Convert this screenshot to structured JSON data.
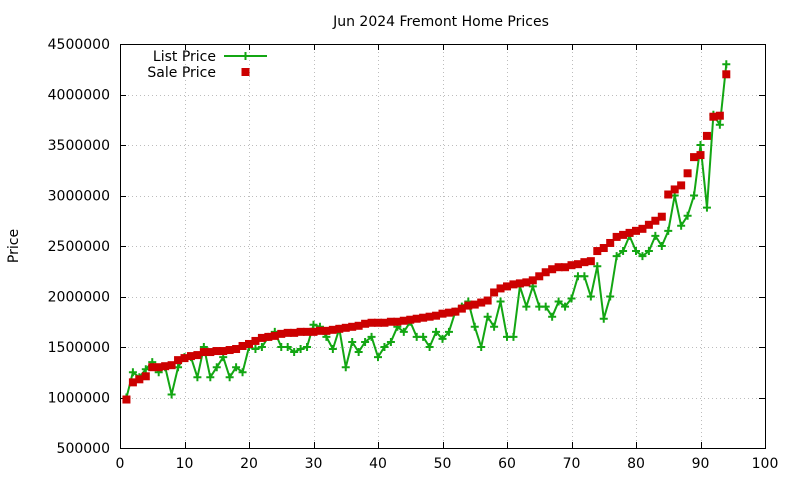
{
  "chart_data": {
    "type": "line",
    "title": "Jun 2024 Fremont Home Prices",
    "xlabel": "",
    "ylabel": "Price",
    "xlim": [
      0,
      100
    ],
    "ylim": [
      500000,
      4500000
    ],
    "xticks": [
      0,
      10,
      20,
      30,
      40,
      50,
      60,
      70,
      80,
      90,
      100
    ],
    "yticks": [
      500000,
      1000000,
      1500000,
      2000000,
      2500000,
      3000000,
      3500000,
      4000000,
      4500000
    ],
    "grid": true,
    "legend_position": "top-left",
    "series": [
      {
        "name": "List Price",
        "style": "line-with-plus-markers",
        "color": "#13a613",
        "x": [
          1,
          2,
          3,
          4,
          5,
          6,
          7,
          8,
          9,
          10,
          11,
          12,
          13,
          14,
          15,
          16,
          17,
          18,
          19,
          20,
          21,
          22,
          23,
          24,
          25,
          26,
          27,
          28,
          29,
          30,
          31,
          32,
          33,
          34,
          35,
          36,
          37,
          38,
          39,
          40,
          41,
          42,
          43,
          44,
          45,
          46,
          47,
          48,
          49,
          50,
          51,
          52,
          53,
          54,
          55,
          56,
          57,
          58,
          59,
          60,
          61,
          62,
          63,
          64,
          65,
          66,
          67,
          68,
          69,
          70,
          71,
          72,
          73,
          74,
          75,
          76,
          77,
          78,
          79,
          80,
          81,
          82,
          83,
          84,
          85,
          86,
          87,
          88,
          89,
          90,
          91,
          92,
          93,
          94
        ],
        "values": [
          1000000,
          1250000,
          1200000,
          1280000,
          1350000,
          1250000,
          1300000,
          1030000,
          1300000,
          1400000,
          1400000,
          1200000,
          1500000,
          1200000,
          1300000,
          1400000,
          1200000,
          1300000,
          1250000,
          1500000,
          1480000,
          1500000,
          1600000,
          1650000,
          1500000,
          1500000,
          1450000,
          1480000,
          1500000,
          1720000,
          1700000,
          1600000,
          1480000,
          1680000,
          1300000,
          1550000,
          1450000,
          1550000,
          1600000,
          1400000,
          1500000,
          1550000,
          1700000,
          1650000,
          1750000,
          1600000,
          1600000,
          1500000,
          1650000,
          1580000,
          1650000,
          1850000,
          1900000,
          1950000,
          1700000,
          1500000,
          1800000,
          1700000,
          1950000,
          1600000,
          1600000,
          2100000,
          1900000,
          2100000,
          1900000,
          1900000,
          1800000,
          1950000,
          1900000,
          1980000,
          2200000,
          2200000,
          2000000,
          2300000,
          1780000,
          2000000,
          2400000,
          2450000,
          2600000,
          2450000,
          2400000,
          2450000,
          2600000,
          2500000,
          2650000,
          3000000,
          2700000,
          2800000,
          3000000,
          3500000,
          2880000,
          3800000,
          3700000,
          4300000
        ]
      },
      {
        "name": "Sale Price",
        "style": "square-markers",
        "color": "#cc0000",
        "x": [
          1,
          2,
          3,
          4,
          5,
          6,
          7,
          8,
          9,
          10,
          11,
          12,
          13,
          14,
          15,
          16,
          17,
          18,
          19,
          20,
          21,
          22,
          23,
          24,
          25,
          26,
          27,
          28,
          29,
          30,
          31,
          32,
          33,
          34,
          35,
          36,
          37,
          38,
          39,
          40,
          41,
          42,
          43,
          44,
          45,
          46,
          47,
          48,
          49,
          50,
          51,
          52,
          53,
          54,
          55,
          56,
          57,
          58,
          59,
          60,
          61,
          62,
          63,
          64,
          65,
          66,
          67,
          68,
          69,
          70,
          71,
          72,
          73,
          74,
          75,
          76,
          77,
          78,
          79,
          80,
          81,
          82,
          83,
          84,
          85,
          86,
          87,
          88,
          89,
          90,
          91,
          92,
          93,
          94
        ],
        "values": [
          980000,
          1150000,
          1180000,
          1210000,
          1300000,
          1300000,
          1310000,
          1320000,
          1370000,
          1390000,
          1410000,
          1420000,
          1450000,
          1450000,
          1460000,
          1460000,
          1470000,
          1480000,
          1510000,
          1530000,
          1560000,
          1590000,
          1600000,
          1610000,
          1630000,
          1640000,
          1640000,
          1650000,
          1650000,
          1650000,
          1660000,
          1660000,
          1670000,
          1680000,
          1690000,
          1700000,
          1710000,
          1730000,
          1740000,
          1740000,
          1740000,
          1750000,
          1750000,
          1760000,
          1770000,
          1780000,
          1790000,
          1800000,
          1810000,
          1830000,
          1840000,
          1850000,
          1880000,
          1910000,
          1920000,
          1940000,
          1960000,
          2040000,
          2080000,
          2100000,
          2120000,
          2130000,
          2140000,
          2160000,
          2200000,
          2240000,
          2270000,
          2290000,
          2290000,
          2310000,
          2320000,
          2340000,
          2350000,
          2450000,
          2480000,
          2530000,
          2590000,
          2610000,
          2630000,
          2650000,
          2670000,
          2710000,
          2750000,
          2790000,
          3010000,
          3060000,
          3100000,
          3220000,
          3380000,
          3400000,
          3590000,
          3780000,
          3790000,
          4200000
        ]
      }
    ]
  }
}
